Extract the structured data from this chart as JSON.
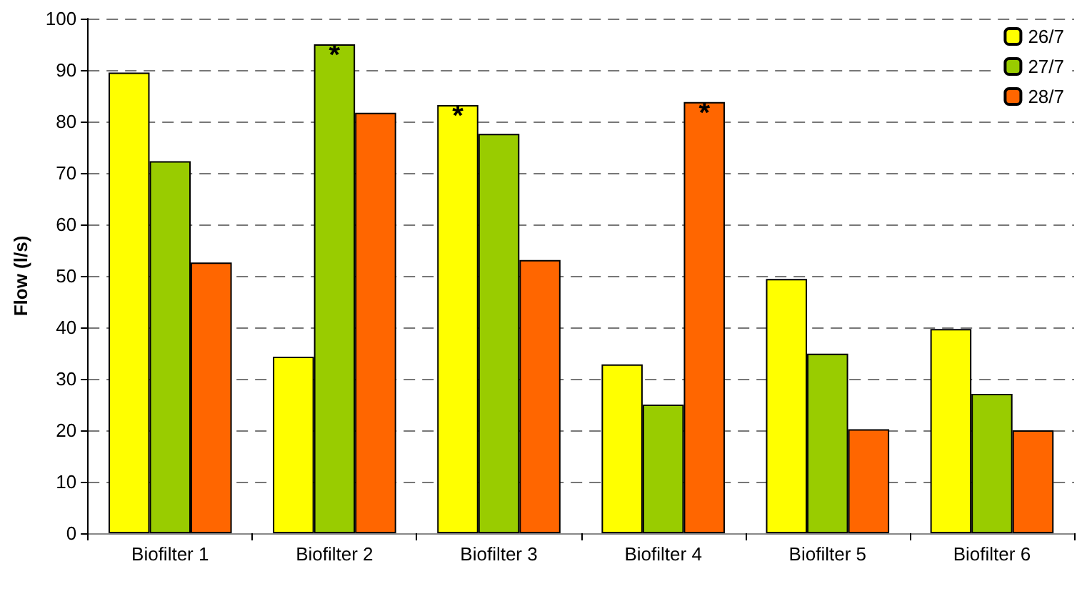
{
  "chart_data": {
    "type": "bar",
    "ylabel": "Flow (l/s)",
    "categories": [
      "Biofilter 1",
      "Biofilter 2",
      "Biofilter 3",
      "Biofilter 4",
      "Biofilter 5",
      "Biofilter 6"
    ],
    "series": [
      {
        "name": "26/7",
        "color": "#ffff00",
        "values": [
          89.5,
          34.3,
          83.2,
          32.8,
          49.4,
          39.7
        ],
        "value_labels": [
          null,
          null,
          "*",
          null,
          null,
          null
        ]
      },
      {
        "name": "27/7",
        "color": "#99cc00",
        "values": [
          72.3,
          95,
          77.6,
          25,
          34.9,
          27.1
        ],
        "value_labels": [
          null,
          "*",
          null,
          null,
          null,
          null
        ]
      },
      {
        "name": "28/7",
        "color": "#ff6600",
        "values": [
          52.6,
          81.7,
          53.1,
          83.8,
          20.2,
          20
        ],
        "value_labels": [
          null,
          null,
          null,
          "*",
          null,
          null
        ]
      }
    ],
    "ylim": [
      0,
      100
    ],
    "yticks": [
      0,
      10,
      20,
      30,
      40,
      50,
      60,
      70,
      80,
      90,
      100
    ],
    "grid": "y",
    "line_style": "dashed",
    "legend": "top right"
  }
}
